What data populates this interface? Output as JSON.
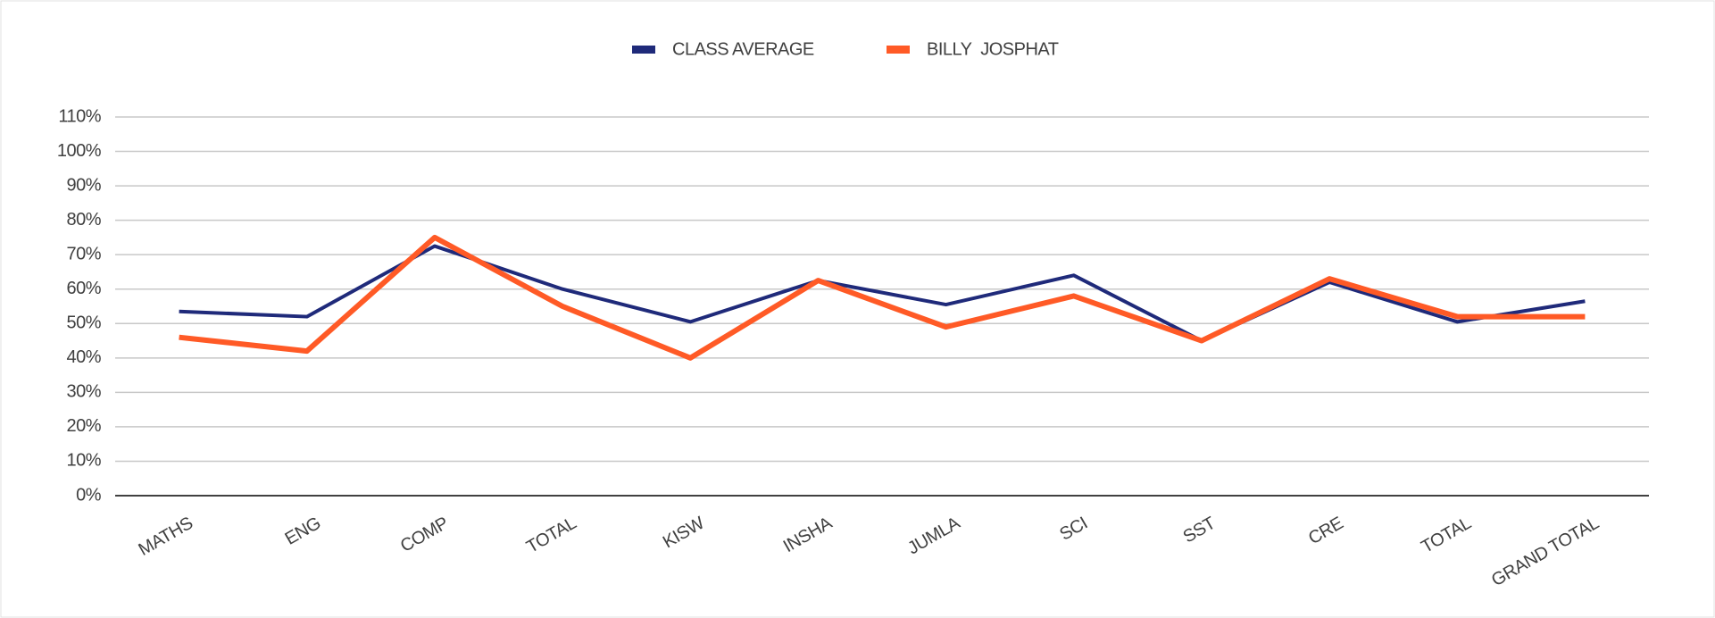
{
  "chart_data": {
    "type": "line",
    "categories": [
      "MATHS",
      "ENG",
      "COMP",
      "TOTAL",
      "KISW",
      "INSHA",
      "JUMLA",
      "SCI",
      "SST",
      "CRE",
      "TOTAL",
      "GRAND TOTAL"
    ],
    "series": [
      {
        "name": "CLASS AVERAGE",
        "color": "#1f2a7a",
        "values": [
          53.5,
          52,
          72.5,
          60,
          50.5,
          62.5,
          55.5,
          64,
          45,
          62,
          50.5,
          56.5
        ]
      },
      {
        "name": "BILLY  JOSPHAT",
        "color": "#ff5a26",
        "values": [
          46,
          42,
          75,
          55,
          40,
          62.5,
          49,
          58,
          45,
          63,
          52,
          52
        ]
      }
    ],
    "ylim": [
      0,
      110
    ],
    "yticks": [
      {
        "value": 0,
        "label": "0%"
      },
      {
        "value": 10,
        "label": "10%"
      },
      {
        "value": 20,
        "label": "20%"
      },
      {
        "value": 30,
        "label": "30%"
      },
      {
        "value": 40,
        "label": "40%"
      },
      {
        "value": 50,
        "label": "50%"
      },
      {
        "value": 60,
        "label": "60%"
      },
      {
        "value": 70,
        "label": "70%"
      },
      {
        "value": 80,
        "label": "80%"
      },
      {
        "value": 90,
        "label": "90%"
      },
      {
        "value": 100,
        "label": "100%"
      },
      {
        "value": 110,
        "label": "110%"
      }
    ],
    "grid": true,
    "legend": "top"
  }
}
